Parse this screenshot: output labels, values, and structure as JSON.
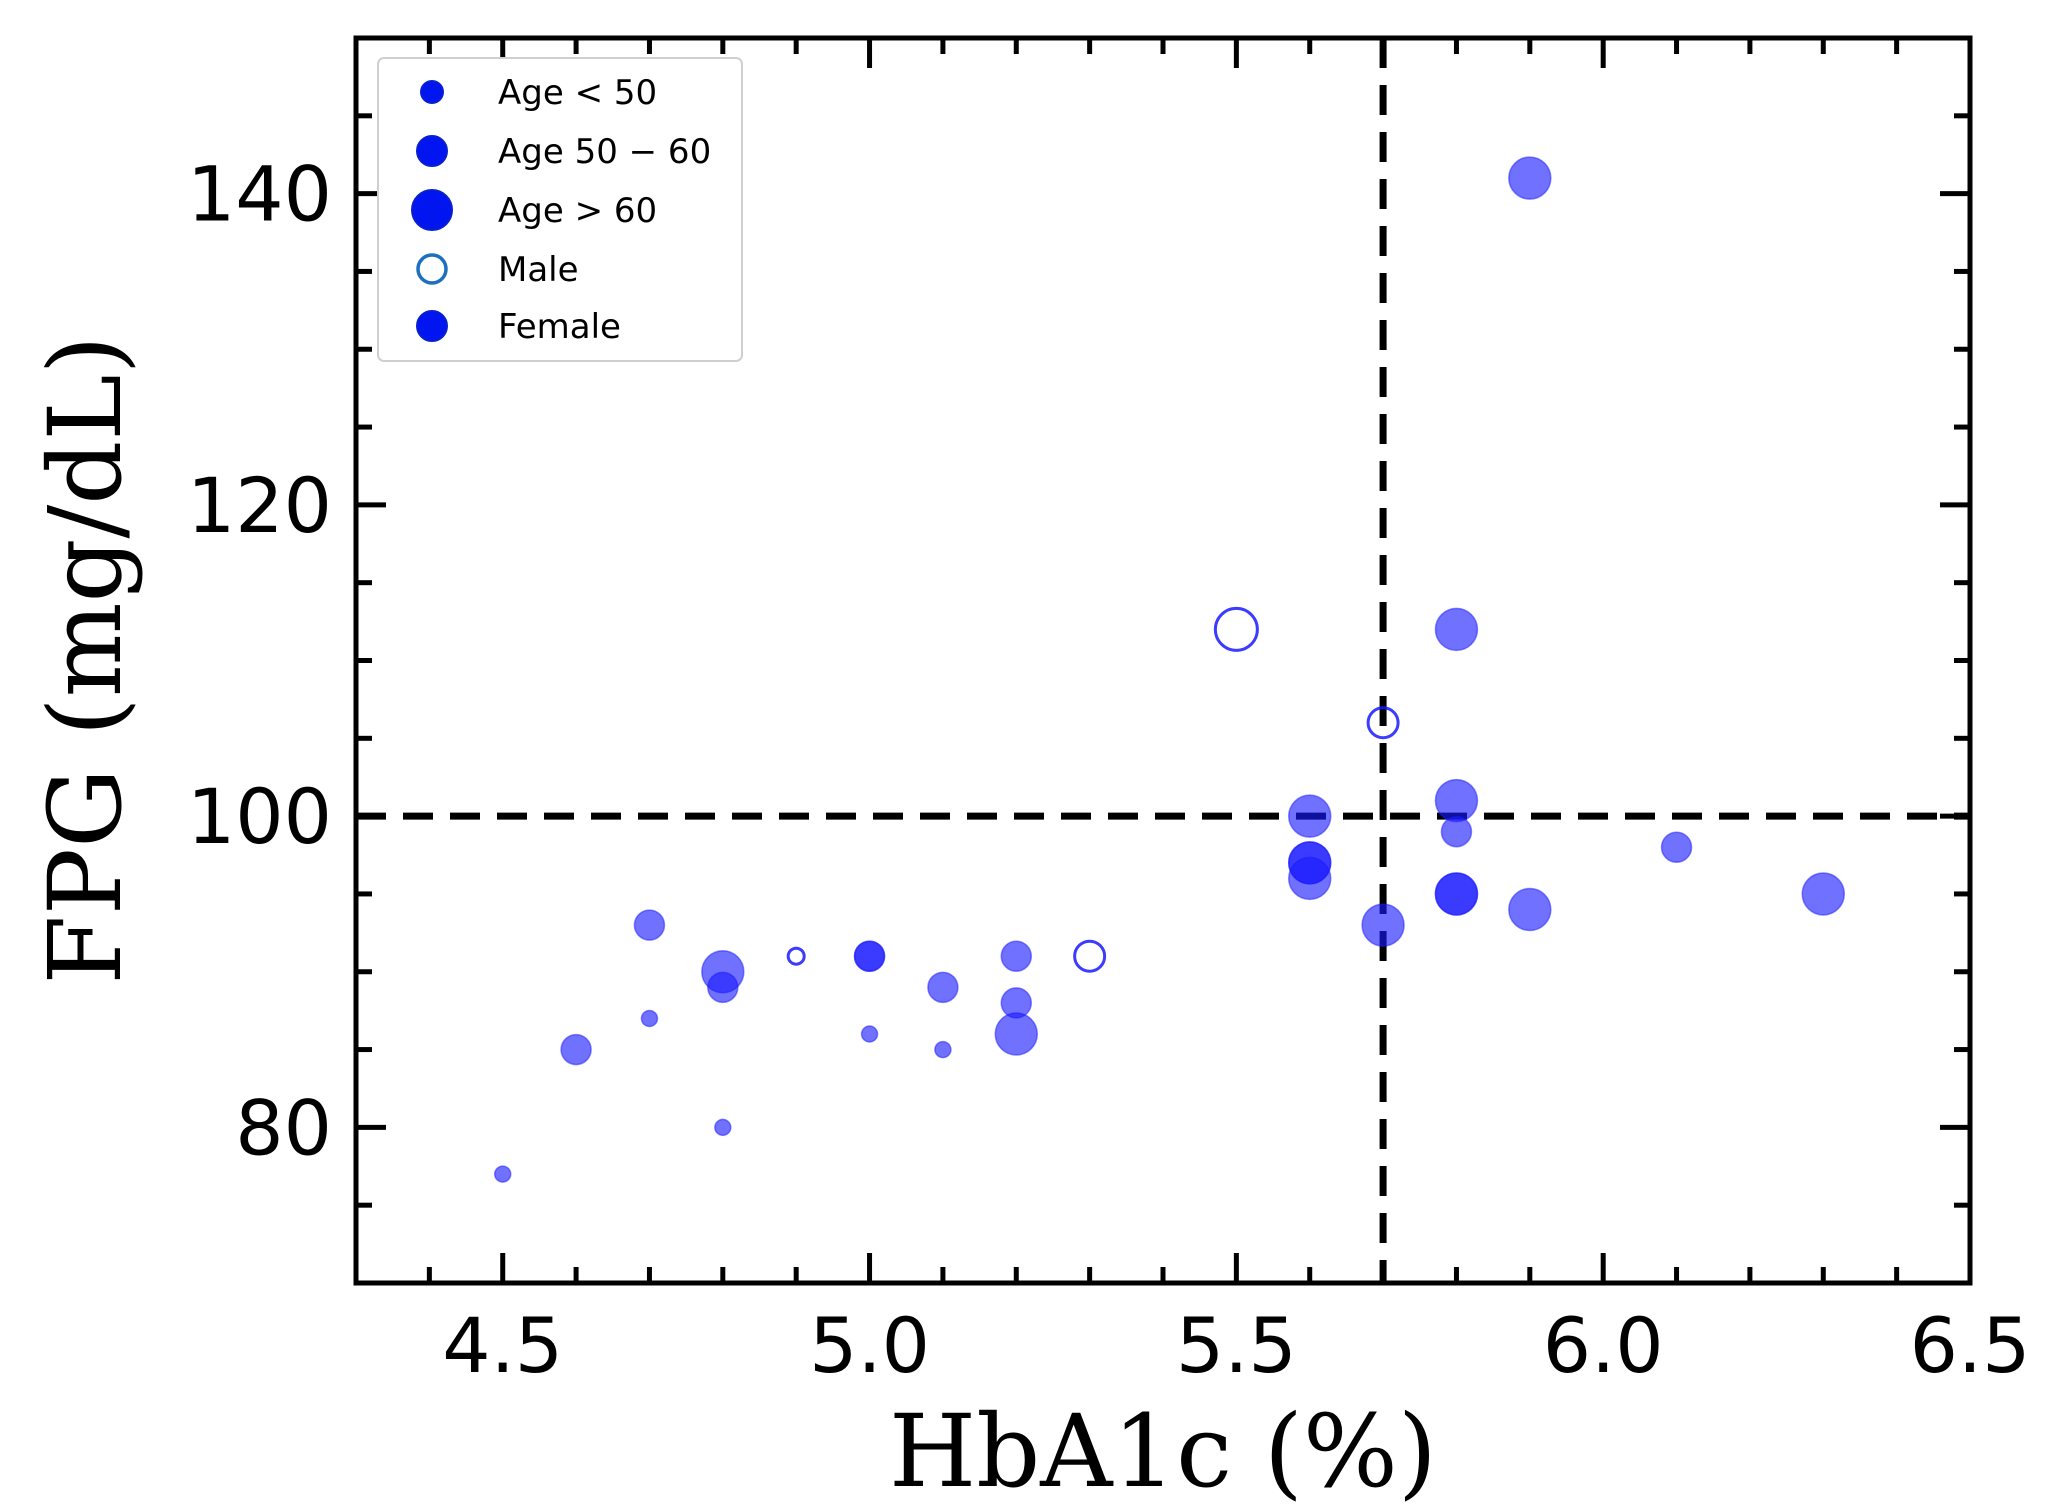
{
  "chart_data": {
    "type": "scatter",
    "xlabel": "HbA1c (%)",
    "ylabel": "FPG (mg/dL)",
    "xlim": [
      4.3,
      6.5
    ],
    "ylim": [
      70,
      150
    ],
    "x_ticks": [
      4.5,
      5.0,
      5.5,
      6.0,
      6.5
    ],
    "x_tick_labels": [
      "4.5",
      "5.0",
      "5.5",
      "6.0",
      "6.5"
    ],
    "y_ticks": [
      80,
      100,
      120,
      140
    ],
    "y_tick_labels": [
      "80",
      "100",
      "120",
      "140"
    ],
    "thresholds": {
      "x": 5.7,
      "y": 100
    },
    "point_color": "#1a1aff",
    "legend": {
      "position": "top-left",
      "entries": [
        {
          "label": "Age  < 50",
          "marker": "small-filled"
        },
        {
          "label": "Age 50 − 60",
          "marker": "medium-filled"
        },
        {
          "label": "Age  > 60",
          "marker": "large-filled"
        },
        {
          "label": "Male",
          "marker": "open"
        },
        {
          "label": "Female",
          "marker": "filled"
        }
      ]
    },
    "points": [
      {
        "x": 4.5,
        "y": 77,
        "age": "<50",
        "sex": "Female"
      },
      {
        "x": 4.6,
        "y": 85,
        "age": "50-60",
        "sex": "Female"
      },
      {
        "x": 4.7,
        "y": 93,
        "age": "50-60",
        "sex": "Female"
      },
      {
        "x": 4.7,
        "y": 87,
        "age": "<50",
        "sex": "Female"
      },
      {
        "x": 4.8,
        "y": 90,
        "age": ">60",
        "sex": "Female"
      },
      {
        "x": 4.8,
        "y": 89,
        "age": "50-60",
        "sex": "Female"
      },
      {
        "x": 4.8,
        "y": 80,
        "age": "<50",
        "sex": "Female"
      },
      {
        "x": 4.9,
        "y": 91,
        "age": "<50",
        "sex": "Male"
      },
      {
        "x": 5.0,
        "y": 91,
        "age": "50-60",
        "sex": "Female"
      },
      {
        "x": 5.0,
        "y": 91,
        "age": "50-60",
        "sex": "Female"
      },
      {
        "x": 5.0,
        "y": 86,
        "age": "<50",
        "sex": "Female"
      },
      {
        "x": 5.1,
        "y": 89,
        "age": "50-60",
        "sex": "Female"
      },
      {
        "x": 5.1,
        "y": 85,
        "age": "<50",
        "sex": "Female"
      },
      {
        "x": 5.2,
        "y": 91,
        "age": "50-60",
        "sex": "Female"
      },
      {
        "x": 5.2,
        "y": 88,
        "age": "50-60",
        "sex": "Female"
      },
      {
        "x": 5.2,
        "y": 86,
        "age": ">60",
        "sex": "Female"
      },
      {
        "x": 5.3,
        "y": 91,
        "age": "50-60",
        "sex": "Male"
      },
      {
        "x": 5.5,
        "y": 112,
        "age": ">60",
        "sex": "Male"
      },
      {
        "x": 5.6,
        "y": 100,
        "age": ">60",
        "sex": "Female"
      },
      {
        "x": 5.6,
        "y": 97,
        "age": ">60",
        "sex": "Female"
      },
      {
        "x": 5.6,
        "y": 97,
        "age": ">60",
        "sex": "Female"
      },
      {
        "x": 5.6,
        "y": 96,
        "age": ">60",
        "sex": "Female"
      },
      {
        "x": 5.7,
        "y": 106,
        "age": "50-60",
        "sex": "Male"
      },
      {
        "x": 5.7,
        "y": 93,
        "age": ">60",
        "sex": "Female"
      },
      {
        "x": 5.8,
        "y": 112,
        "age": ">60",
        "sex": "Female"
      },
      {
        "x": 5.8,
        "y": 101,
        "age": ">60",
        "sex": "Female"
      },
      {
        "x": 5.8,
        "y": 99,
        "age": "50-60",
        "sex": "Female"
      },
      {
        "x": 5.8,
        "y": 95,
        "age": ">60",
        "sex": "Female"
      },
      {
        "x": 5.8,
        "y": 95,
        "age": ">60",
        "sex": "Female"
      },
      {
        "x": 5.9,
        "y": 141,
        "age": ">60",
        "sex": "Female"
      },
      {
        "x": 5.9,
        "y": 94,
        "age": ">60",
        "sex": "Female"
      },
      {
        "x": 6.1,
        "y": 98,
        "age": "50-60",
        "sex": "Female"
      },
      {
        "x": 6.3,
        "y": 95,
        "age": ">60",
        "sex": "Female"
      }
    ]
  }
}
